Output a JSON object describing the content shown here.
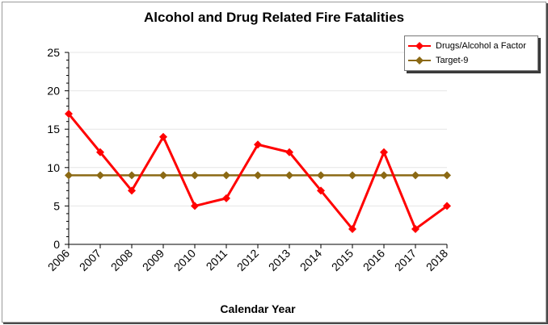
{
  "chart_data": {
    "type": "line",
    "title": "Alcohol and Drug Related Fire Fatalities",
    "xlabel": "Calendar Year",
    "ylabel": "",
    "categories": [
      "2006",
      "2007",
      "2008",
      "2009",
      "2010",
      "2011",
      "2012",
      "2013",
      "2014",
      "2015",
      "2016",
      "2017",
      "2018"
    ],
    "ylim": [
      0,
      25
    ],
    "yticks": [
      0,
      5,
      10,
      15,
      20,
      25
    ],
    "grid": true,
    "legend_position": "top-right",
    "series": [
      {
        "name": "Drugs/Alcohol a Factor",
        "color": "#ff0000",
        "marker": "diamond",
        "values": [
          17,
          12,
          7,
          14,
          5,
          6,
          13,
          12,
          7,
          2,
          12,
          2,
          5
        ]
      },
      {
        "name": "Target-9",
        "color": "#8b6914",
        "marker": "diamond",
        "values": [
          9,
          9,
          9,
          9,
          9,
          9,
          9,
          9,
          9,
          9,
          9,
          9,
          9
        ]
      }
    ]
  }
}
